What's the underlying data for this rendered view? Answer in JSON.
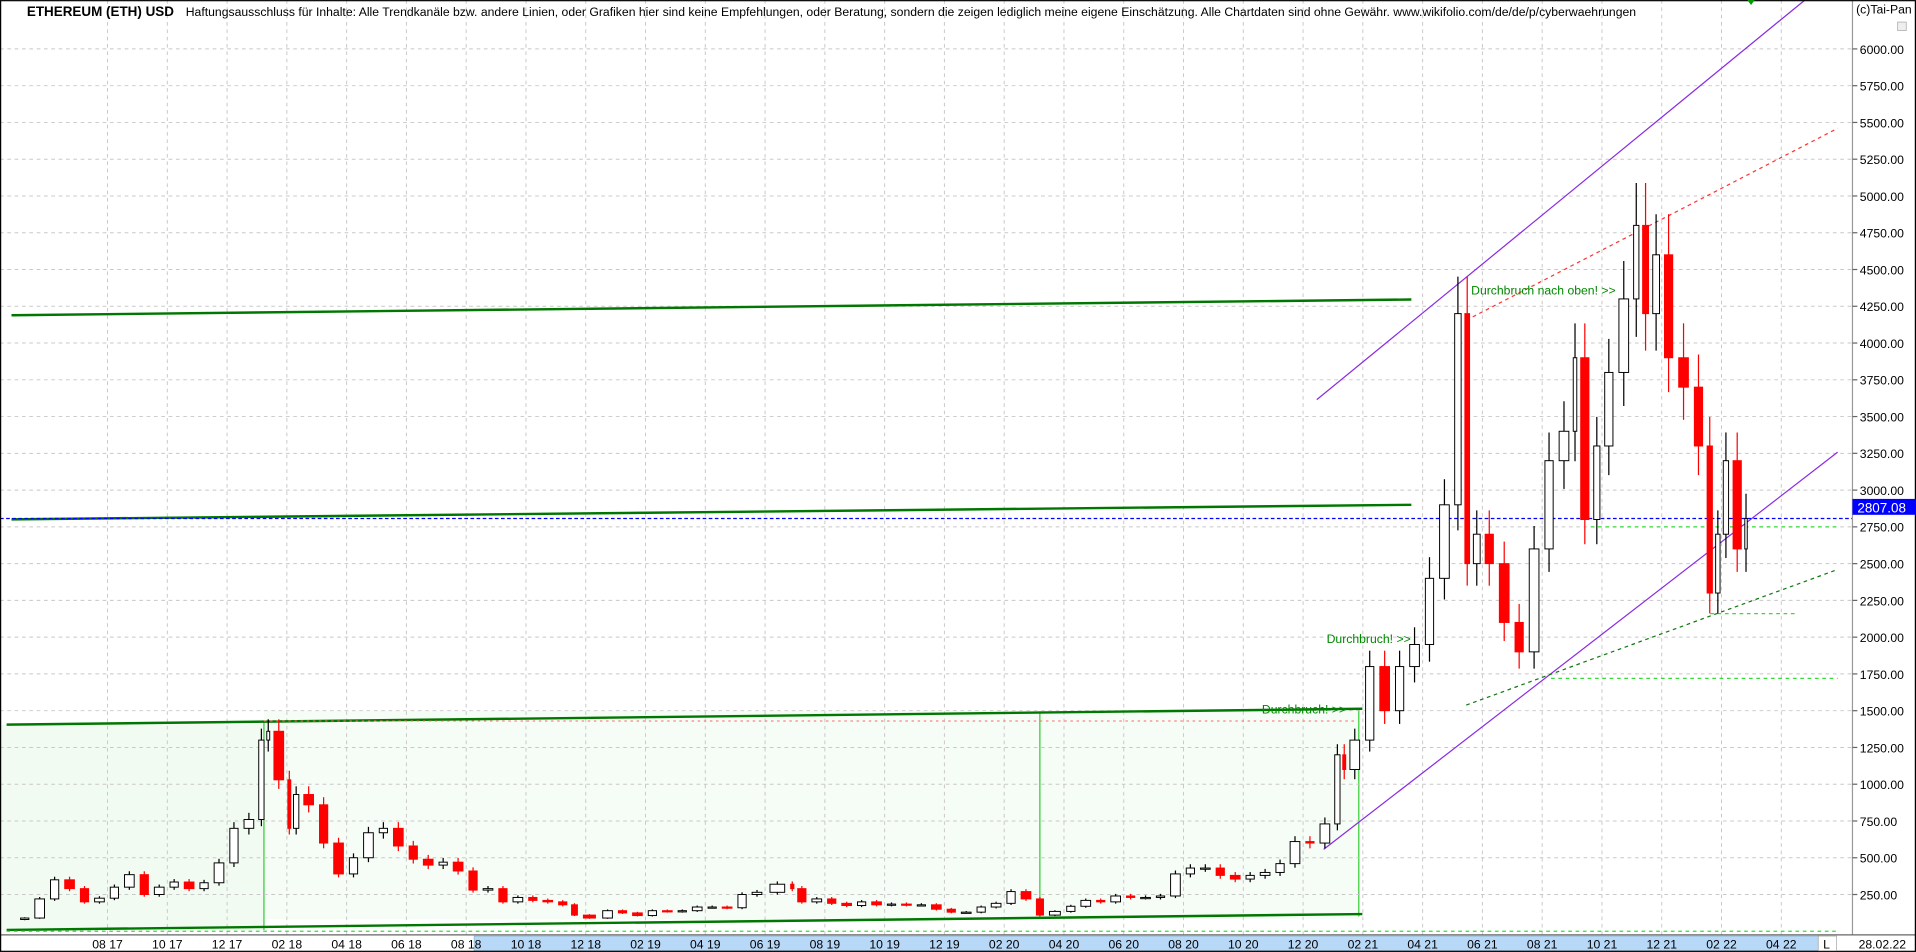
{
  "header": {
    "title": "ETHEREUM (ETH) USD",
    "disclaimer": "Haftungsausschluss für Inhalte: Alle Trendkanäle bzw. andere Linien, oder Grafiken hier sind keine Empfehlungen, oder Beratung, sondern die zeigen lediglich meine eigene Einschätzung. Alle Chartdaten sind ohne Gewähr.  www.wikifolio.com/de/de/p/cyberwaehrungen",
    "copyright": "(c)Tai-Pan"
  },
  "footer": {
    "scale_button": "L",
    "current_date": "28.02.22"
  },
  "chart_data": {
    "type": "candlestick",
    "title": "ETHEREUM (ETH) USD",
    "ylim": [
      0,
      6300
    ],
    "y_ticks": [
      "250.00",
      "500.00",
      "750.00",
      "1000.00",
      "1250.00",
      "1500.00",
      "1750.00",
      "2000.00",
      "2250.00",
      "2500.00",
      "2750.00",
      "3000.00",
      "3250.00",
      "3500.00",
      "3750.00",
      "4000.00",
      "4250.00",
      "4500.00",
      "4750.00",
      "5000.00",
      "5250.00",
      "5500.00",
      "5750.00",
      "6000.00"
    ],
    "x_ticks": [
      "08 17",
      "10 17",
      "12 17",
      "02 18",
      "04 18",
      "06 18",
      "08 18",
      "10 18",
      "12 18",
      "02 19",
      "04 19",
      "06 19",
      "08 19",
      "10 19",
      "12 19",
      "02 20",
      "04 20",
      "06 20",
      "08 20",
      "10 20",
      "12 20",
      "02 21",
      "04 21",
      "06 21",
      "08 21",
      "10 21",
      "12 21",
      "02 22",
      "04 22"
    ],
    "grid": true,
    "last_price": "2807.08",
    "last_price_value": 2807.08,
    "colors": {
      "up": "#ffffff",
      "down": "#ff0000",
      "last_price": "#0000ff",
      "channel": "#8a2be2",
      "support": "#008000",
      "shade": "#f2fbf2"
    },
    "prices": [
      [
        "2017-05-01",
        80
      ],
      [
        "2017-05-15",
        90
      ],
      [
        "2017-06-01",
        220
      ],
      [
        "2017-06-15",
        350
      ],
      [
        "2017-07-01",
        290
      ],
      [
        "2017-07-15",
        200
      ],
      [
        "2017-08-01",
        225
      ],
      [
        "2017-08-15",
        300
      ],
      [
        "2017-09-01",
        385
      ],
      [
        "2017-09-15",
        250
      ],
      [
        "2017-10-01",
        300
      ],
      [
        "2017-10-15",
        335
      ],
      [
        "2017-11-01",
        290
      ],
      [
        "2017-11-15",
        330
      ],
      [
        "2017-12-01",
        465
      ],
      [
        "2017-12-15",
        700
      ],
      [
        "2018-01-01",
        760
      ],
      [
        "2018-01-10",
        1300
      ],
      [
        "2018-01-15",
        1360
      ],
      [
        "2018-02-01",
        1030
      ],
      [
        "2018-02-06",
        700
      ],
      [
        "2018-02-15",
        930
      ],
      [
        "2018-03-01",
        860
      ],
      [
        "2018-03-15",
        600
      ],
      [
        "2018-04-01",
        390
      ],
      [
        "2018-04-15",
        500
      ],
      [
        "2018-05-01",
        670
      ],
      [
        "2018-05-15",
        700
      ],
      [
        "2018-06-01",
        580
      ],
      [
        "2018-06-15",
        490
      ],
      [
        "2018-07-01",
        450
      ],
      [
        "2018-07-15",
        470
      ],
      [
        "2018-08-01",
        410
      ],
      [
        "2018-08-15",
        280
      ],
      [
        "2018-09-01",
        290
      ],
      [
        "2018-09-15",
        200
      ],
      [
        "2018-10-01",
        230
      ],
      [
        "2018-10-15",
        210
      ],
      [
        "2018-11-01",
        200
      ],
      [
        "2018-11-15",
        180
      ],
      [
        "2018-11-25",
        110
      ],
      [
        "2018-12-15",
        90
      ],
      [
        "2019-01-01",
        140
      ],
      [
        "2019-01-15",
        125
      ],
      [
        "2019-02-01",
        107
      ],
      [
        "2019-02-15",
        140
      ],
      [
        "2019-03-01",
        135
      ],
      [
        "2019-03-15",
        140
      ],
      [
        "2019-04-01",
        165
      ],
      [
        "2019-04-15",
        165
      ],
      [
        "2019-05-01",
        160
      ],
      [
        "2019-05-15",
        250
      ],
      [
        "2019-06-01",
        265
      ],
      [
        "2019-06-26",
        320
      ],
      [
        "2019-07-01",
        290
      ],
      [
        "2019-07-15",
        200
      ],
      [
        "2019-08-01",
        220
      ],
      [
        "2019-08-15",
        190
      ],
      [
        "2019-09-01",
        175
      ],
      [
        "2019-09-15",
        200
      ],
      [
        "2019-10-01",
        180
      ],
      [
        "2019-10-15",
        185
      ],
      [
        "2019-11-01",
        180
      ],
      [
        "2019-11-15",
        180
      ],
      [
        "2019-12-01",
        150
      ],
      [
        "2019-12-15",
        130
      ],
      [
        "2020-01-01",
        130
      ],
      [
        "2020-01-15",
        165
      ],
      [
        "2020-02-01",
        190
      ],
      [
        "2020-02-15",
        270
      ],
      [
        "2020-03-01",
        220
      ],
      [
        "2020-03-13",
        110
      ],
      [
        "2020-04-01",
        135
      ],
      [
        "2020-04-15",
        170
      ],
      [
        "2020-05-01",
        210
      ],
      [
        "2020-05-15",
        200
      ],
      [
        "2020-06-01",
        240
      ],
      [
        "2020-06-15",
        230
      ],
      [
        "2020-07-01",
        230
      ],
      [
        "2020-07-15",
        240
      ],
      [
        "2020-08-01",
        390
      ],
      [
        "2020-08-15",
        430
      ],
      [
        "2020-09-01",
        430
      ],
      [
        "2020-09-15",
        380
      ],
      [
        "2020-10-01",
        355
      ],
      [
        "2020-10-15",
        380
      ],
      [
        "2020-11-01",
        400
      ],
      [
        "2020-11-15",
        460
      ],
      [
        "2020-12-01",
        610
      ],
      [
        "2020-12-15",
        600
      ],
      [
        "2021-01-01",
        730
      ],
      [
        "2021-01-10",
        1200
      ],
      [
        "2021-01-15",
        1100
      ],
      [
        "2021-02-01",
        1300
      ],
      [
        "2021-02-15",
        1800
      ],
      [
        "2021-03-01",
        1500
      ],
      [
        "2021-03-15",
        1800
      ],
      [
        "2021-04-01",
        1950
      ],
      [
        "2021-04-15",
        2400
      ],
      [
        "2021-05-01",
        2900
      ],
      [
        "2021-05-12",
        4200
      ],
      [
        "2021-05-20",
        2500
      ],
      [
        "2021-06-01",
        2700
      ],
      [
        "2021-06-15",
        2500
      ],
      [
        "2021-07-01",
        2100
      ],
      [
        "2021-07-15",
        1900
      ],
      [
        "2021-08-01",
        2600
      ],
      [
        "2021-08-15",
        3200
      ],
      [
        "2021-09-01",
        3400
      ],
      [
        "2021-09-07",
        3900
      ],
      [
        "2021-09-21",
        2800
      ],
      [
        "2021-10-01",
        3300
      ],
      [
        "2021-10-15",
        3800
      ],
      [
        "2021-11-01",
        4300
      ],
      [
        "2021-11-10",
        4800
      ],
      [
        "2021-11-20",
        4200
      ],
      [
        "2021-12-01",
        4600
      ],
      [
        "2021-12-15",
        3900
      ],
      [
        "2022-01-01",
        3700
      ],
      [
        "2022-01-15",
        3300
      ],
      [
        "2022-01-24",
        2300
      ],
      [
        "2022-02-01",
        2700
      ],
      [
        "2022-02-10",
        3200
      ],
      [
        "2022-02-24",
        2600
      ],
      [
        "2022-02-28",
        2807.08
      ]
    ],
    "trendlines": [
      {
        "kind": "support-thick",
        "from": [
          "2017-04-25",
          4189
        ],
        "to": [
          "2021-03-20",
          4296
        ]
      },
      {
        "kind": "support-thick",
        "from": [
          "2017-04-25",
          2801
        ],
        "to": [
          "2021-03-20",
          2900
        ]
      },
      {
        "kind": "support-thick",
        "from": [
          "2017-04-20",
          1405
        ],
        "to": [
          "2021-01-31",
          1513
        ]
      },
      {
        "kind": "support-thick",
        "from": [
          "2017-04-20",
          9
        ],
        "to": [
          "2021-01-31",
          117
        ]
      },
      {
        "kind": "channel",
        "from": [
          "2020-12-15",
          3615
        ],
        "to": [
          "2022-04-25",
          6332
        ]
      },
      {
        "kind": "channel",
        "from": [
          "2020-12-22",
          557
        ],
        "to": [
          "2022-05-28",
          3258
        ]
      },
      {
        "kind": "resistance-dotted",
        "from": [
          "2021-05-15",
          4155
        ],
        "to": [
          "2022-05-28",
          5460
        ]
      },
      {
        "kind": "support-dotted",
        "from": [
          "2021-05-15",
          1538
        ],
        "to": [
          "2022-05-28",
          2460
        ]
      },
      {
        "kind": "level-dotted",
        "from": [
          "2021-09-20",
          2750
        ],
        "to": [
          "2022-05-28",
          2750
        ]
      },
      {
        "kind": "level-dotted",
        "from": [
          "2021-08-10",
          1720
        ],
        "to": [
          "2022-05-28",
          1720
        ]
      },
      {
        "kind": "level-dotted",
        "from": [
          "2022-01-20",
          2160
        ],
        "to": [
          "2022-04-15",
          2160
        ]
      },
      {
        "kind": "level-dotted",
        "from": [
          "2017-04-20",
          0
        ],
        "to": [
          "2022-05-28",
          0
        ]
      }
    ],
    "annotations": [
      {
        "text": "Durchbruch nach oben! >>",
        "date": "2021-05-20",
        "price": 4330
      },
      {
        "text": "Durchbruch! >>",
        "date": "2020-12-25",
        "price": 1960
      },
      {
        "text": "Durchbruch! >>",
        "date": "2020-10-20",
        "price": 1480
      }
    ]
  }
}
